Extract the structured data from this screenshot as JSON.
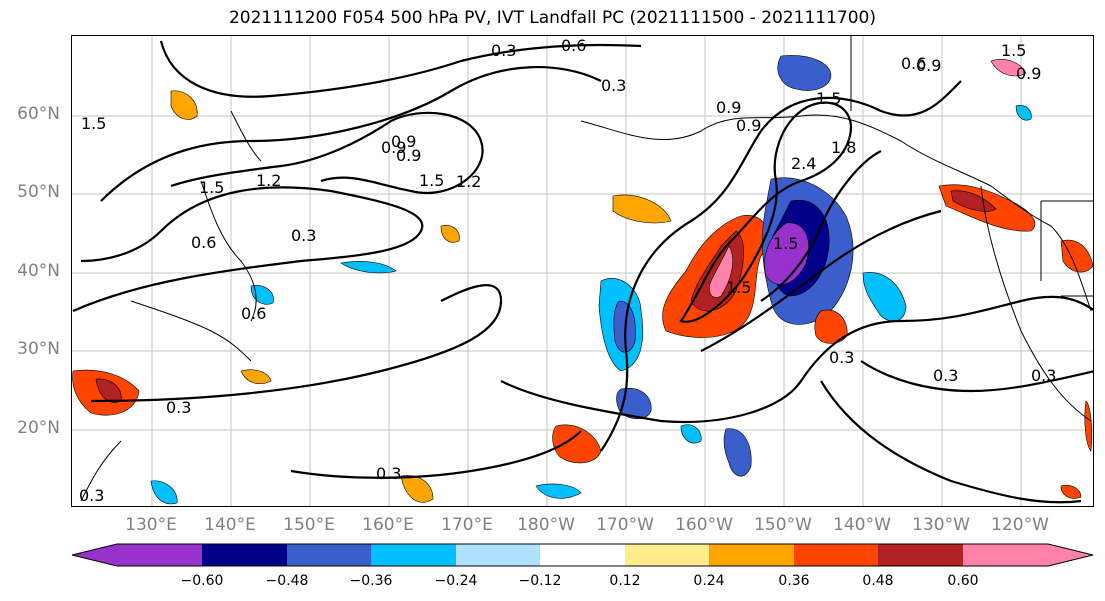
{
  "title": "2021111200 F054 500 hPa PV, IVT Landfall PC (2021111500 - 2021111700)",
  "latitude_labels": [
    "60°N",
    "50°N",
    "40°N",
    "30°N",
    "20°N"
  ],
  "longitude_labels": [
    "130°E",
    "140°E",
    "150°E",
    "160°E",
    "170°E",
    "180°W",
    "170°W",
    "160°W",
    "150°W",
    "140°W",
    "130°W",
    "120°W"
  ],
  "contour_labels": [
    "0.3",
    "0.6",
    "0.3",
    "0.9",
    "0.9",
    "1.5",
    "0.9",
    "1.5",
    "1.2",
    "1.5",
    "1.2",
    "0.6",
    "0.3",
    "0.9",
    "1.5",
    "1.5",
    "0.9",
    "0.9",
    "2.4",
    "1.8",
    "1.5",
    "0.6",
    "0.3",
    "0.3",
    "0.3",
    "0.3",
    "0.3",
    "0.3",
    "1.5",
    "0.6",
    "0.9"
  ],
  "colorbar": {
    "colors": [
      "#9932cc",
      "#00008b",
      "#3a5fcd",
      "#00bfff",
      "#b0e2ff",
      "#ffffff",
      "#ffec8b",
      "#ffa500",
      "#ff4500",
      "#b22222",
      "#ff82ab"
    ],
    "tick_labels": [
      "−0.60",
      "−0.48",
      "−0.36",
      "−0.24",
      "−0.12",
      "0.12",
      "0.24",
      "0.36",
      "0.48",
      "0.60"
    ]
  }
}
